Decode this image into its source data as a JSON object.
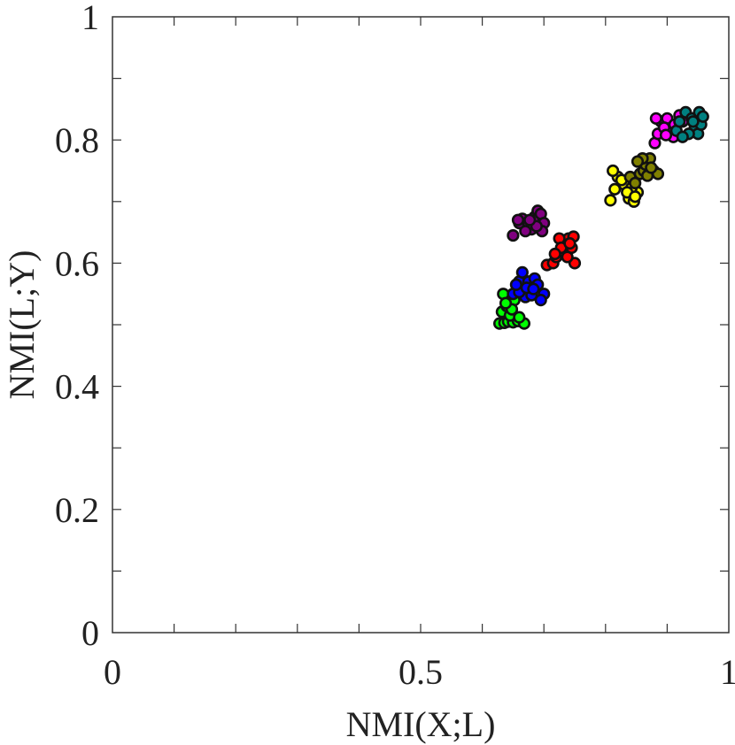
{
  "chart_data": {
    "type": "scatter",
    "title": "",
    "xlabel": "NMI(X;L)",
    "ylabel": "NMI(L;Y)",
    "xlim": [
      0,
      1
    ],
    "ylim": [
      0,
      1
    ],
    "xticks": [
      0,
      0.5,
      1
    ],
    "xtick_labels": [
      "0",
      "0.5",
      "1"
    ],
    "yticks": [
      0,
      0.2,
      0.4,
      0.6,
      0.8,
      1
    ],
    "ytick_labels": [
      "0",
      "0.2",
      "0.4",
      "0.6",
      "0.8",
      "1"
    ],
    "grid": false,
    "legend": "none",
    "series": [
      {
        "color": "#00ff00",
        "points": [
          [
            0.628,
            0.502
          ],
          [
            0.636,
            0.503
          ],
          [
            0.642,
            0.505
          ],
          [
            0.65,
            0.504
          ],
          [
            0.658,
            0.506
          ],
          [
            0.668,
            0.502
          ],
          [
            0.632,
            0.521
          ],
          [
            0.64,
            0.53
          ],
          [
            0.645,
            0.515
          ],
          [
            0.66,
            0.512
          ],
          [
            0.652,
            0.54
          ],
          [
            0.634,
            0.55
          ],
          [
            0.648,
            0.525
          ],
          [
            0.638,
            0.535
          ]
        ]
      },
      {
        "color": "#0000ff",
        "points": [
          [
            0.65,
            0.55
          ],
          [
            0.66,
            0.57
          ],
          [
            0.665,
            0.585
          ],
          [
            0.675,
            0.57
          ],
          [
            0.685,
            0.575
          ],
          [
            0.69,
            0.565
          ],
          [
            0.67,
            0.545
          ],
          [
            0.68,
            0.548
          ],
          [
            0.66,
            0.553
          ],
          [
            0.655,
            0.565
          ],
          [
            0.7,
            0.55
          ],
          [
            0.695,
            0.54
          ],
          [
            0.672,
            0.56
          ],
          [
            0.683,
            0.558
          ]
        ]
      },
      {
        "color": "#ff0000",
        "points": [
          [
            0.705,
            0.597
          ],
          [
            0.715,
            0.6
          ],
          [
            0.72,
            0.61
          ],
          [
            0.73,
            0.62
          ],
          [
            0.735,
            0.635
          ],
          [
            0.74,
            0.64
          ],
          [
            0.725,
            0.64
          ],
          [
            0.745,
            0.625
          ],
          [
            0.75,
            0.6
          ],
          [
            0.748,
            0.643
          ],
          [
            0.728,
            0.625
          ],
          [
            0.718,
            0.615
          ],
          [
            0.738,
            0.61
          ],
          [
            0.742,
            0.632
          ]
        ]
      },
      {
        "color": "#800080",
        "points": [
          [
            0.65,
            0.645
          ],
          [
            0.66,
            0.665
          ],
          [
            0.665,
            0.672
          ],
          [
            0.675,
            0.665
          ],
          [
            0.685,
            0.675
          ],
          [
            0.69,
            0.685
          ],
          [
            0.695,
            0.68
          ],
          [
            0.7,
            0.665
          ],
          [
            0.68,
            0.655
          ],
          [
            0.67,
            0.652
          ],
          [
            0.697,
            0.652
          ],
          [
            0.658,
            0.67
          ],
          [
            0.688,
            0.66
          ],
          [
            0.677,
            0.67
          ]
        ]
      },
      {
        "color": "#ffff00",
        "points": [
          [
            0.808,
            0.702
          ],
          [
            0.815,
            0.72
          ],
          [
            0.82,
            0.74
          ],
          [
            0.812,
            0.75
          ],
          [
            0.83,
            0.728
          ],
          [
            0.838,
            0.705
          ],
          [
            0.846,
            0.7
          ],
          [
            0.852,
            0.715
          ],
          [
            0.826,
            0.735
          ],
          [
            0.842,
            0.722
          ],
          [
            0.835,
            0.715
          ],
          [
            0.848,
            0.708
          ]
        ]
      },
      {
        "color": "#808000",
        "points": [
          [
            0.84,
            0.74
          ],
          [
            0.848,
            0.73
          ],
          [
            0.856,
            0.745
          ],
          [
            0.862,
            0.75
          ],
          [
            0.865,
            0.76
          ],
          [
            0.872,
            0.77
          ],
          [
            0.878,
            0.75
          ],
          [
            0.885,
            0.745
          ],
          [
            0.86,
            0.77
          ],
          [
            0.852,
            0.765
          ],
          [
            0.868,
            0.742
          ],
          [
            0.874,
            0.755
          ]
        ]
      },
      {
        "color": "#ff00ff",
        "points": [
          [
            0.88,
            0.795
          ],
          [
            0.885,
            0.81
          ],
          [
            0.89,
            0.83
          ],
          [
            0.9,
            0.835
          ],
          [
            0.905,
            0.815
          ],
          [
            0.91,
            0.805
          ],
          [
            0.92,
            0.84
          ],
          [
            0.895,
            0.82
          ],
          [
            0.882,
            0.835
          ],
          [
            0.912,
            0.825
          ],
          [
            0.925,
            0.83
          ],
          [
            0.898,
            0.808
          ]
        ]
      },
      {
        "color": "#008080",
        "points": [
          [
            0.915,
            0.815
          ],
          [
            0.92,
            0.83
          ],
          [
            0.93,
            0.845
          ],
          [
            0.94,
            0.835
          ],
          [
            0.945,
            0.82
          ],
          [
            0.95,
            0.81
          ],
          [
            0.955,
            0.825
          ],
          [
            0.952,
            0.845
          ],
          [
            0.935,
            0.81
          ],
          [
            0.925,
            0.805
          ],
          [
            0.942,
            0.83
          ],
          [
            0.958,
            0.838
          ]
        ]
      }
    ]
  }
}
